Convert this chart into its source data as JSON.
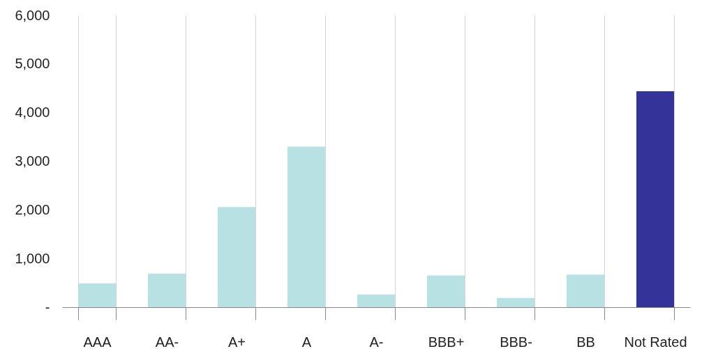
{
  "chart_data": {
    "type": "bar",
    "categories": [
      "AAA",
      "AA-",
      "A+",
      "A",
      "A-",
      "BBB+",
      "BBB-",
      "BB",
      "Not Rated"
    ],
    "values": [
      490,
      690,
      2060,
      3300,
      260,
      650,
      190,
      670,
      4440
    ],
    "colors": [
      "#b7e1e3",
      "#b7e1e3",
      "#b7e1e3",
      "#b7e1e3",
      "#b7e1e3",
      "#b7e1e3",
      "#b7e1e3",
      "#b7e1e3",
      "#333399"
    ],
    "ylim": [
      0,
      6000
    ],
    "yticks": [
      {
        "value": 0,
        "label": "-"
      },
      {
        "value": 1000,
        "label": "1,000"
      },
      {
        "value": 2000,
        "label": "2,000"
      },
      {
        "value": 3000,
        "label": "3,000"
      },
      {
        "value": 4000,
        "label": "4,000"
      },
      {
        "value": 5000,
        "label": "5,000"
      },
      {
        "value": 6000,
        "label": "6,000"
      }
    ],
    "grid": "x"
  }
}
